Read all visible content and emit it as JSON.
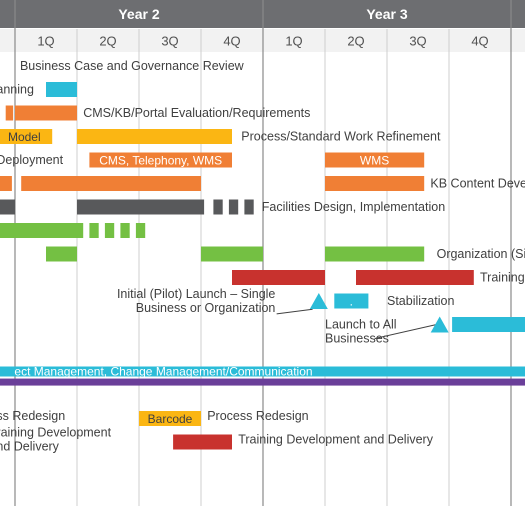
{
  "chart_data": {
    "type": "gantt",
    "x_unit": "quarter",
    "years": [
      {
        "label": "Year 2",
        "start": 0,
        "end": 4
      },
      {
        "label": "Year 3",
        "start": 4,
        "end": 8
      }
    ],
    "quarters": [
      "1Q",
      "2Q",
      "3Q",
      "4Q",
      "1Q",
      "2Q",
      "3Q",
      "4Q"
    ],
    "colors": {
      "header": "#6d6e71",
      "cyan": "#2bbcd8",
      "orange": "#f07f35",
      "yellow": "#fbb613",
      "dark": "#58595b",
      "green": "#74c043",
      "red": "#c8322e",
      "purple": "#6a3f99",
      "text": "#404040",
      "grid": "#cfcfcf"
    },
    "bars": [
      {
        "row": 1,
        "start": 0.5,
        "end": 1.0,
        "color": "cyan"
      },
      {
        "row": 2,
        "start": -0.15,
        "end": -0.03,
        "color": "orange"
      },
      {
        "row": 2,
        "start": 0.0,
        "end": 1.0,
        "color": "orange"
      },
      {
        "row": 3,
        "start": -0.3,
        "end": 0.6,
        "color": "yellow",
        "label": "Model",
        "label_color": "#404040"
      },
      {
        "row": 3,
        "start": 1.0,
        "end": 3.5,
        "color": "yellow"
      },
      {
        "row": 4,
        "start": 1.2,
        "end": 3.5,
        "color": "orange",
        "label": "CMS, Telephony,  WMS",
        "label_color": "#ffffff"
      },
      {
        "row": 4,
        "start": 5.0,
        "end": 6.6,
        "color": "orange",
        "label": "WMS",
        "label_color": "#ffffff"
      },
      {
        "row": 5,
        "start": -0.3,
        "end": -0.05,
        "color": "orange"
      },
      {
        "row": 5,
        "start": 0.1,
        "end": 3.0,
        "color": "orange"
      },
      {
        "row": 5,
        "start": 5.0,
        "end": 6.6,
        "color": "orange"
      },
      {
        "row": 6,
        "start": -0.3,
        "end": 0.0,
        "color": "dark"
      },
      {
        "row": 6,
        "start": 1.0,
        "end": 3.05,
        "color": "dark"
      },
      {
        "row": 6,
        "start": 3.2,
        "end": 3.35,
        "color": "dark"
      },
      {
        "row": 6,
        "start": 3.45,
        "end": 3.6,
        "color": "dark"
      },
      {
        "row": 6,
        "start": 3.7,
        "end": 3.85,
        "color": "dark"
      },
      {
        "row": 7,
        "start": -0.3,
        "end": 1.1,
        "color": "green"
      },
      {
        "row": 7,
        "start": 1.2,
        "end": 1.35,
        "color": "green"
      },
      {
        "row": 7,
        "start": 1.45,
        "end": 1.6,
        "color": "green"
      },
      {
        "row": 7,
        "start": 1.7,
        "end": 1.85,
        "color": "green"
      },
      {
        "row": 7,
        "start": 1.95,
        "end": 2.1,
        "color": "green"
      },
      {
        "row": 8,
        "start": 0.5,
        "end": 1.0,
        "color": "green"
      },
      {
        "row": 8,
        "start": 3.0,
        "end": 4.0,
        "color": "green"
      },
      {
        "row": 8,
        "start": 5.0,
        "end": 6.6,
        "color": "green"
      },
      {
        "row": 9,
        "start": 3.5,
        "end": 5.0,
        "color": "red"
      },
      {
        "row": 9,
        "start": 5.5,
        "end": 7.4,
        "color": "red"
      },
      {
        "row": 10,
        "start": 5.15,
        "end": 5.7,
        "color": "cyan",
        "label": ".",
        "label_color": "#ffffff"
      },
      {
        "row": 11,
        "start": 7.05,
        "end": 8.3,
        "color": "cyan"
      },
      {
        "row": 15,
        "start": 2.0,
        "end": 3.0,
        "color": "yellow",
        "label": "Barcode",
        "label_color": "#404040"
      },
      {
        "row": 16,
        "start": 2.55,
        "end": 3.5,
        "color": "red"
      }
    ],
    "bands": [
      {
        "row": 13,
        "start": -0.3,
        "end": 8.3,
        "color": "cyan",
        "label": "ect Management, Change Management/Communication",
        "label_color": "#ffffff"
      },
      {
        "row": 13.45,
        "start": -0.3,
        "end": 8.3,
        "color": "purple"
      }
    ],
    "milestones": [
      {
        "row": 10,
        "at": 4.9,
        "color": "cyan"
      },
      {
        "row": 11,
        "at": 6.85,
        "color": "cyan"
      }
    ],
    "labels": [
      {
        "row": 0,
        "at": 0.08,
        "text": "Business Case and Governance Review"
      },
      {
        "row": 1,
        "at": -0.3,
        "text": "anning"
      },
      {
        "row": 2,
        "at": 1.1,
        "text": "CMS/KB/Portal Evaluation/Requirements"
      },
      {
        "row": 3,
        "at": 3.65,
        "text": "Process/Standard Work Refinement"
      },
      {
        "row": 4,
        "at": -0.3,
        "text": "Deployment"
      },
      {
        "row": 5,
        "at": 6.7,
        "text": "KB Content Deve"
      },
      {
        "row": 6,
        "at": 3.98,
        "text": "Facilities Design, Implementation"
      },
      {
        "row": 8,
        "at": 6.8,
        "text": "Organization (Si"
      },
      {
        "row": 9,
        "at": 7.5,
        "text": "Training"
      },
      {
        "row": 10,
        "at": 6.0,
        "text": "Stabilization"
      },
      {
        "row": 14.9,
        "at": -0.3,
        "text": "ss Redesign"
      },
      {
        "row": 14.9,
        "at": 3.1,
        "text": "Process Redesign"
      },
      {
        "row": 15.9,
        "at": 3.6,
        "text": "Training Development and Delivery"
      }
    ],
    "multiline_labels": [
      {
        "row": 10,
        "at": 4.2,
        "align": "end",
        "lines": [
          "Initial (Pilot) Launch – Single",
          "Business or Organization"
        ]
      },
      {
        "row": 11.3,
        "at": 5.0,
        "align": "start",
        "lines": [
          "Launch to All",
          "Businesses"
        ]
      },
      {
        "row": 15.9,
        "at": -0.3,
        "align": "start",
        "lines": [
          "raining Development",
          "nd Delivery"
        ]
      }
    ],
    "connectors": [
      {
        "from_row": 10.55,
        "from_at": 4.22,
        "to_row": 10.35,
        "to_at": 4.8
      },
      {
        "from_row": 11.6,
        "from_at": 5.8,
        "to_row": 11.0,
        "to_at": 6.8
      }
    ]
  }
}
